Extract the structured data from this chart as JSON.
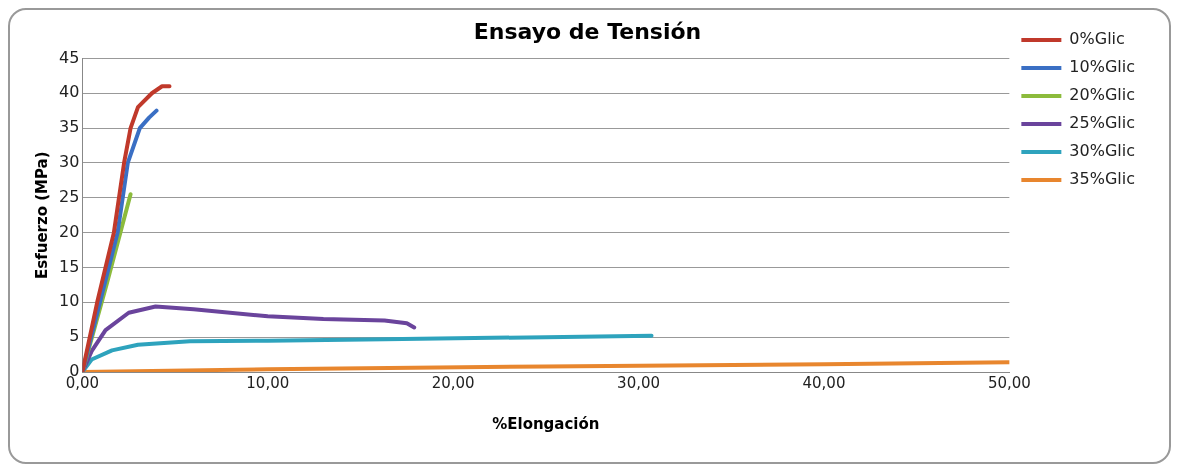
{
  "chart_data": {
    "type": "line",
    "title": "Ensayo de Tensión",
    "xlabel": "%Elongación",
    "ylabel": "Esfuerzo (MPa)",
    "xlim": [
      0,
      50
    ],
    "xticks": [
      {
        "value": 0,
        "label": "0,00"
      },
      {
        "value": 10,
        "label": "10,00"
      },
      {
        "value": 20,
        "label": "20,00"
      },
      {
        "value": 30,
        "label": "30,00"
      },
      {
        "value": 40,
        "label": "40,00"
      },
      {
        "value": 50,
        "label": "50,00"
      }
    ],
    "ylim": [
      0,
      45
    ],
    "yticks": [
      0,
      5,
      10,
      15,
      20,
      25,
      30,
      35,
      40,
      45
    ],
    "grid": "y",
    "legend": "right",
    "marker": "none",
    "line_style": "solid",
    "series": [
      {
        "name": "0%Glic",
        "color": "#c0392b",
        "x": [
          0,
          0.8,
          1.7,
          2.25,
          2.6,
          3.0,
          3.75,
          4.3,
          4.7
        ],
        "values": [
          0,
          10,
          20,
          30,
          35,
          38,
          40,
          41,
          41
        ]
      },
      {
        "name": "10%Glic",
        "color": "#3a6fc4",
        "x": [
          0,
          0.95,
          1.9,
          2.45,
          3.1,
          3.6,
          4.0
        ],
        "values": [
          0,
          10,
          20,
          30,
          35,
          36.5,
          37.5
        ]
      },
      {
        "name": "20%Glic",
        "color": "#8cbb3c",
        "x": [
          0,
          1.3,
          2.6
        ],
        "values": [
          0,
          12.5,
          25.5
        ]
      },
      {
        "name": "25%Glic",
        "color": "#6a449c",
        "x": [
          0,
          0.5,
          1.25,
          2.5,
          3.95,
          6,
          10,
          13,
          16.3,
          17.5,
          17.9
        ],
        "values": [
          0,
          3,
          6,
          8.5,
          9.4,
          9,
          8,
          7.6,
          7.4,
          7,
          6.4
        ]
      },
      {
        "name": "30%Glic",
        "color": "#2ea3bd",
        "x": [
          0,
          0.5,
          1.6,
          3,
          5.8,
          10,
          16.3,
          25,
          30.7
        ],
        "values": [
          0,
          1.8,
          3.1,
          3.9,
          4.4,
          4.5,
          4.7,
          5,
          5.2
        ]
      },
      {
        "name": "35%Glic",
        "color": "#e8862e",
        "x": [
          0,
          10,
          25,
          40,
          50
        ],
        "values": [
          0,
          0.4,
          0.8,
          1.1,
          1.4
        ]
      }
    ]
  }
}
